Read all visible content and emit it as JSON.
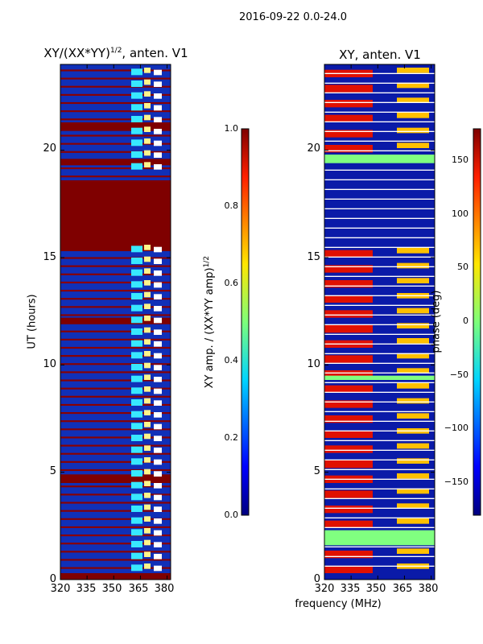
{
  "suptitle": "2016-09-22 0.0-24.0",
  "left_panel": {
    "title_main": "XY/(XX*YY)",
    "title_sup": "1/2",
    "title_tail": ", anten. V1",
    "ylabel": "UT (hours)"
  },
  "right_panel": {
    "title": "XY, anten. V1",
    "xlabel": "frequency (MHz)"
  },
  "colorbar_amp": {
    "label_main": "XY amp. / (XX*YY amp)",
    "label_sup": "1/2",
    "ticks": [
      "0.0",
      "0.2",
      "0.4",
      "0.6",
      "0.8",
      "1.0"
    ]
  },
  "colorbar_phase": {
    "label": "phase (deg)",
    "ticks": [
      "150",
      "100",
      "50",
      "0",
      "−50",
      "−100",
      "−150"
    ]
  },
  "x_ticks": [
    "320",
    "335",
    "350",
    "365",
    "380"
  ],
  "y_ticks": [
    "0",
    "5",
    "10",
    "15",
    "20"
  ],
  "chart_data": [
    {
      "type": "heatmap",
      "title": "XY/(XX*YY)^1/2, anten. V1",
      "xlabel": "frequency (MHz)",
      "ylabel": "UT (hours)",
      "xlim": [
        320,
        382
      ],
      "ylim": [
        0,
        24
      ],
      "xticks": [
        320,
        335,
        350,
        365,
        380
      ],
      "yticks": [
        0,
        5,
        10,
        15,
        20
      ],
      "colorbar": {
        "label": "XY amp. / (XX*YY amp)^1/2",
        "range": [
          0.0,
          1.0
        ],
        "ticks": [
          0.0,
          0.2,
          0.4,
          0.6,
          0.8,
          1.0
        ],
        "colormap": "jet"
      },
      "saturated_blocks_ut": [
        [
          15.3,
          18.6
        ],
        [
          19.3,
          19.6
        ],
        [
          20.9,
          21.3
        ],
        [
          11.9,
          12.2
        ],
        [
          0.0,
          0.3
        ],
        [
          4.5,
          4.9
        ]
      ]
    },
    {
      "type": "heatmap",
      "title": "XY, anten. V1",
      "xlabel": "frequency (MHz)",
      "xlim": [
        320,
        382
      ],
      "ylim": [
        0,
        24
      ],
      "xticks": [
        320,
        335,
        350,
        365,
        380
      ],
      "yticks": [
        0,
        5,
        10,
        15,
        20
      ],
      "colorbar": {
        "label": "phase (deg)",
        "range": [
          -180,
          180
        ],
        "ticks": [
          150,
          100,
          50,
          0,
          -50,
          -100,
          -150
        ],
        "colormap": "jet"
      },
      "flat_zero_phase_bands_ut": [
        [
          1.6,
          2.3
        ],
        [
          19.4,
          19.8
        ],
        [
          9.3,
          9.5
        ]
      ],
      "low_phase_block_ut": [
        15.3,
        19.2
      ]
    }
  ]
}
